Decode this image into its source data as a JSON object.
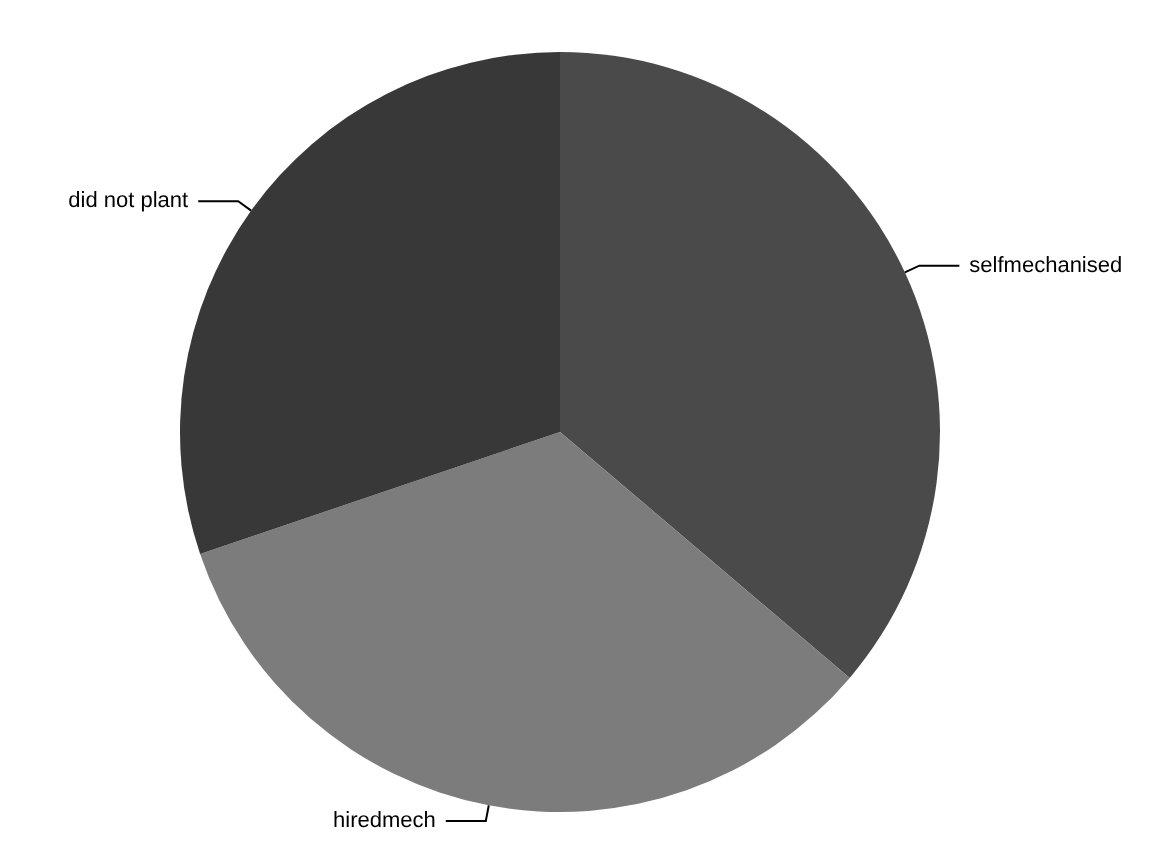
{
  "chart_data": {
    "type": "pie",
    "categories": [
      "selfmechanised",
      "hiredmech",
      "did not plant"
    ],
    "values": [
      36.2,
      33.6,
      30.2
    ],
    "colors": [
      "#4a4a4a",
      "#7c7c7c",
      "#383838"
    ]
  }
}
